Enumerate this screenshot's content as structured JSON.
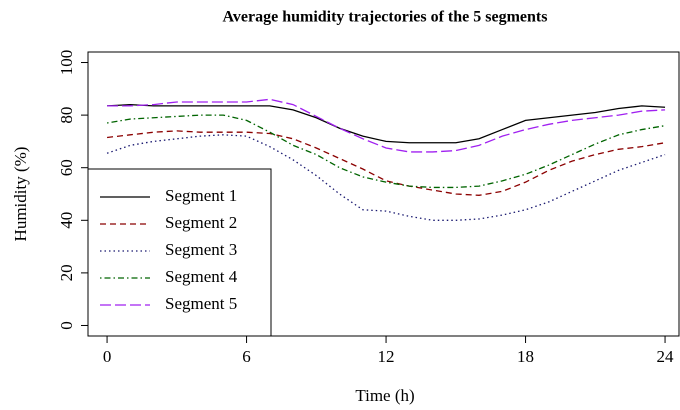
{
  "chart_data": {
    "type": "line",
    "title": "Average humidity trajectories of the 5 segments",
    "x_label": "Time (h)",
    "y_label": "Humidity (%)",
    "x": [
      0,
      1,
      2,
      3,
      4,
      5,
      6,
      7,
      8,
      9,
      10,
      11,
      12,
      13,
      14,
      15,
      16,
      17,
      18,
      19,
      20,
      21,
      22,
      23,
      24
    ],
    "series": [
      {
        "name": "Segment 1",
        "color": "#000000",
        "dash": "solid",
        "values": [
          83.5,
          84,
          83.5,
          83.5,
          83.5,
          83.5,
          83.5,
          83.5,
          82,
          79,
          75,
          72,
          70,
          69.5,
          69.5,
          69.5,
          71,
          74.5,
          78,
          79,
          80,
          81,
          82.5,
          83.5,
          83
        ]
      },
      {
        "name": "Segment 2",
        "color": "#8b0000",
        "dash": "dashed",
        "values": [
          71.5,
          72.5,
          73.5,
          74,
          73.5,
          73.5,
          73.5,
          73,
          71,
          67.5,
          63.5,
          59.5,
          55,
          53,
          51.5,
          50,
          49.5,
          51,
          54.5,
          59,
          62.5,
          65,
          67,
          68,
          69.5
        ]
      },
      {
        "name": "Segment 3",
        "color": "#191970",
        "dash": "dotted",
        "values": [
          65.5,
          68.5,
          70,
          71,
          72,
          72.5,
          72,
          68,
          63,
          57,
          50,
          44,
          43.5,
          41.5,
          40,
          40,
          40.5,
          42,
          44,
          47,
          51,
          55,
          59,
          62,
          65
        ]
      },
      {
        "name": "Segment 4",
        "color": "#006400",
        "dash": "dotdash",
        "values": [
          77,
          78.5,
          79,
          79.5,
          80,
          80,
          78,
          73.5,
          68.5,
          65,
          60,
          56.5,
          54.5,
          53,
          52.5,
          52.5,
          53,
          55,
          57.5,
          61,
          65,
          69,
          72.5,
          74.5,
          76
        ]
      },
      {
        "name": "Segment 5",
        "color": "#a020f0",
        "dash": "longdash",
        "values": [
          83.5,
          83.5,
          84,
          85,
          85,
          85,
          85,
          86,
          84,
          79.5,
          75,
          71,
          67.5,
          66,
          66,
          66.5,
          68.5,
          72,
          74.5,
          76.5,
          78,
          79,
          80,
          81.5,
          82
        ]
      }
    ],
    "xlim": [
      -0.82,
      24.6
    ],
    "xticks": [
      0,
      6,
      12,
      18,
      24
    ],
    "ylim": [
      -4,
      104
    ],
    "yticks": [
      0,
      20,
      40,
      60,
      80,
      100
    ],
    "legend": "bottom-left",
    "grid": false
  }
}
